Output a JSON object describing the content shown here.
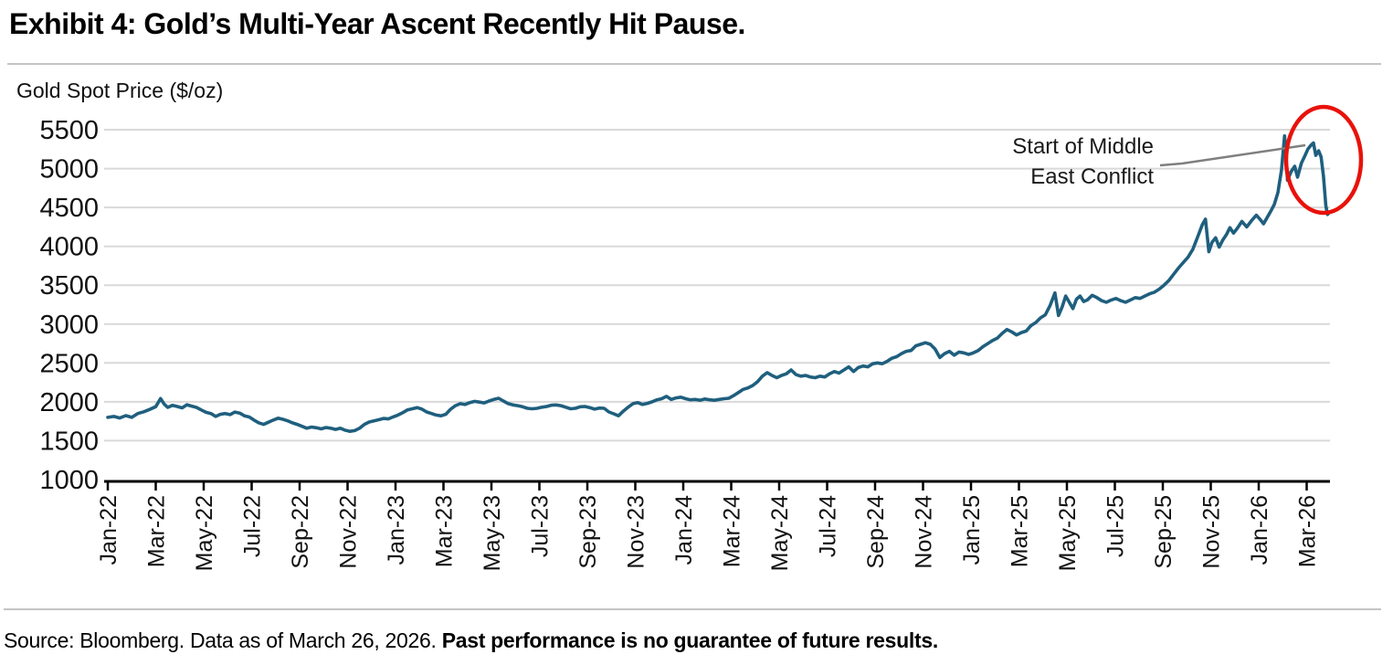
{
  "header": {
    "title": "Exhibit 4: Gold’s Multi-Year Ascent Recently Hit Pause."
  },
  "footer": {
    "source_prefix": "Source: Bloomberg. Data as of March 26, 2026. ",
    "source_emphasis": "Past performance is no guarantee of future results."
  },
  "chart_data": {
    "type": "line",
    "title": "",
    "axis_label": "Gold Spot Price ($/oz)",
    "ylabel": "Gold Spot Price ($/oz)",
    "xlabel": "",
    "ylim": [
      1000,
      5500
    ],
    "yticks": [
      1000,
      1500,
      2000,
      2500,
      3000,
      3500,
      4000,
      4500,
      5000,
      5500
    ],
    "xticks": [
      "Jan-22",
      "Mar-22",
      "May-22",
      "Jul-22",
      "Sep-22",
      "Nov-22",
      "Jan-23",
      "Mar-23",
      "May-23",
      "Jul-23",
      "Sep-23",
      "Nov-23",
      "Jan-24",
      "Mar-24",
      "May-24",
      "Jul-24",
      "Sep-24",
      "Nov-24",
      "Jan-25",
      "Mar-25",
      "May-25",
      "Jul-25",
      "Sep-25",
      "Nov-25",
      "Jan-26",
      "Mar-26"
    ],
    "months_per_xtick": 2,
    "x_unit": "months since Jan-2022",
    "grid": "horizontal",
    "legend": "none",
    "series_name": "Gold Spot Price ($/oz)",
    "line_color": "#1F5F7E",
    "grid_color": "#D9D9D9",
    "axis_color": "#000000",
    "annotation": {
      "label_line1": "Start of Middle",
      "label_line2": "East Conflict",
      "target": "March 2026 peak (~$5,300/oz)",
      "ellipse_color": "#E8120B",
      "connector_color": "#7F7F7F"
    },
    "points": [
      [
        0,
        1800
      ],
      [
        0.25,
        1812
      ],
      [
        0.5,
        1792
      ],
      [
        0.75,
        1822
      ],
      [
        1,
        1800
      ],
      [
        1.25,
        1850
      ],
      [
        1.5,
        1872
      ],
      [
        1.75,
        1902
      ],
      [
        2,
        1938
      ],
      [
        2.2,
        2042
      ],
      [
        2.35,
        1972
      ],
      [
        2.5,
        1928
      ],
      [
        2.7,
        1955
      ],
      [
        2.9,
        1940
      ],
      [
        3.1,
        1922
      ],
      [
        3.3,
        1962
      ],
      [
        3.5,
        1945
      ],
      [
        3.7,
        1928
      ],
      [
        3.9,
        1895
      ],
      [
        4.1,
        1865
      ],
      [
        4.3,
        1850
      ],
      [
        4.5,
        1812
      ],
      [
        4.7,
        1840
      ],
      [
        4.9,
        1850
      ],
      [
        5.1,
        1835
      ],
      [
        5.3,
        1868
      ],
      [
        5.5,
        1855
      ],
      [
        5.7,
        1820
      ],
      [
        5.9,
        1805
      ],
      [
        6.1,
        1765
      ],
      [
        6.3,
        1730
      ],
      [
        6.5,
        1710
      ],
      [
        6.7,
        1738
      ],
      [
        6.9,
        1765
      ],
      [
        7.1,
        1790
      ],
      [
        7.3,
        1775
      ],
      [
        7.5,
        1755
      ],
      [
        7.7,
        1730
      ],
      [
        7.9,
        1710
      ],
      [
        8.1,
        1685
      ],
      [
        8.3,
        1660
      ],
      [
        8.5,
        1676
      ],
      [
        8.7,
        1666
      ],
      [
        8.9,
        1652
      ],
      [
        9.1,
        1670
      ],
      [
        9.3,
        1660
      ],
      [
        9.5,
        1645
      ],
      [
        9.7,
        1660
      ],
      [
        9.9,
        1635
      ],
      [
        10.1,
        1620
      ],
      [
        10.3,
        1630
      ],
      [
        10.5,
        1660
      ],
      [
        10.7,
        1710
      ],
      [
        10.9,
        1740
      ],
      [
        11.1,
        1755
      ],
      [
        11.3,
        1770
      ],
      [
        11.5,
        1786
      ],
      [
        11.7,
        1780
      ],
      [
        11.9,
        1806
      ],
      [
        12.1,
        1830
      ],
      [
        12.3,
        1860
      ],
      [
        12.5,
        1896
      ],
      [
        12.7,
        1910
      ],
      [
        12.9,
        1926
      ],
      [
        13.1,
        1906
      ],
      [
        13.3,
        1870
      ],
      [
        13.5,
        1850
      ],
      [
        13.7,
        1830
      ],
      [
        13.9,
        1820
      ],
      [
        14.1,
        1840
      ],
      [
        14.3,
        1906
      ],
      [
        14.5,
        1950
      ],
      [
        14.7,
        1976
      ],
      [
        14.9,
        1966
      ],
      [
        15.1,
        1990
      ],
      [
        15.3,
        2006
      ],
      [
        15.5,
        1996
      ],
      [
        15.7,
        1986
      ],
      [
        15.9,
        2010
      ],
      [
        16.1,
        2030
      ],
      [
        16.3,
        2046
      ],
      [
        16.5,
        2010
      ],
      [
        16.7,
        1976
      ],
      [
        16.9,
        1960
      ],
      [
        17.1,
        1950
      ],
      [
        17.3,
        1936
      ],
      [
        17.5,
        1916
      ],
      [
        17.7,
        1910
      ],
      [
        17.9,
        1916
      ],
      [
        18.1,
        1930
      ],
      [
        18.3,
        1940
      ],
      [
        18.5,
        1956
      ],
      [
        18.7,
        1960
      ],
      [
        18.9,
        1950
      ],
      [
        19.1,
        1930
      ],
      [
        19.3,
        1910
      ],
      [
        19.5,
        1916
      ],
      [
        19.7,
        1936
      ],
      [
        19.9,
        1940
      ],
      [
        20.1,
        1926
      ],
      [
        20.3,
        1906
      ],
      [
        20.5,
        1920
      ],
      [
        20.7,
        1916
      ],
      [
        20.9,
        1870
      ],
      [
        21.1,
        1846
      ],
      [
        21.3,
        1820
      ],
      [
        21.5,
        1880
      ],
      [
        21.7,
        1930
      ],
      [
        21.9,
        1976
      ],
      [
        22.1,
        1990
      ],
      [
        22.3,
        1966
      ],
      [
        22.5,
        1980
      ],
      [
        22.7,
        2000
      ],
      [
        22.9,
        2026
      ],
      [
        23.1,
        2040
      ],
      [
        23.3,
        2070
      ],
      [
        23.5,
        2030
      ],
      [
        23.7,
        2050
      ],
      [
        23.9,
        2060
      ],
      [
        24.1,
        2040
      ],
      [
        24.3,
        2026
      ],
      [
        24.5,
        2030
      ],
      [
        24.7,
        2020
      ],
      [
        24.9,
        2036
      ],
      [
        25.1,
        2026
      ],
      [
        25.3,
        2020
      ],
      [
        25.5,
        2030
      ],
      [
        25.7,
        2040
      ],
      [
        25.9,
        2046
      ],
      [
        26.1,
        2080
      ],
      [
        26.3,
        2120
      ],
      [
        26.5,
        2160
      ],
      [
        26.7,
        2180
      ],
      [
        26.9,
        2210
      ],
      [
        27.1,
        2260
      ],
      [
        27.3,
        2330
      ],
      [
        27.5,
        2376
      ],
      [
        27.7,
        2340
      ],
      [
        27.9,
        2310
      ],
      [
        28.1,
        2340
      ],
      [
        28.3,
        2360
      ],
      [
        28.5,
        2410
      ],
      [
        28.7,
        2350
      ],
      [
        28.9,
        2330
      ],
      [
        29.1,
        2340
      ],
      [
        29.3,
        2320
      ],
      [
        29.5,
        2310
      ],
      [
        29.7,
        2330
      ],
      [
        29.9,
        2320
      ],
      [
        30.1,
        2360
      ],
      [
        30.3,
        2390
      ],
      [
        30.5,
        2370
      ],
      [
        30.7,
        2410
      ],
      [
        30.9,
        2450
      ],
      [
        31.1,
        2390
      ],
      [
        31.3,
        2440
      ],
      [
        31.5,
        2460
      ],
      [
        31.7,
        2450
      ],
      [
        31.9,
        2490
      ],
      [
        32.1,
        2500
      ],
      [
        32.3,
        2490
      ],
      [
        32.5,
        2520
      ],
      [
        32.7,
        2560
      ],
      [
        32.9,
        2580
      ],
      [
        33.1,
        2620
      ],
      [
        33.3,
        2650
      ],
      [
        33.5,
        2660
      ],
      [
        33.7,
        2720
      ],
      [
        33.9,
        2740
      ],
      [
        34.1,
        2760
      ],
      [
        34.3,
        2740
      ],
      [
        34.5,
        2680
      ],
      [
        34.7,
        2570
      ],
      [
        34.9,
        2620
      ],
      [
        35.1,
        2650
      ],
      [
        35.3,
        2600
      ],
      [
        35.5,
        2640
      ],
      [
        35.7,
        2630
      ],
      [
        35.9,
        2610
      ],
      [
        36.1,
        2630
      ],
      [
        36.3,
        2660
      ],
      [
        36.5,
        2710
      ],
      [
        36.7,
        2750
      ],
      [
        36.9,
        2790
      ],
      [
        37.1,
        2820
      ],
      [
        37.3,
        2880
      ],
      [
        37.5,
        2930
      ],
      [
        37.7,
        2900
      ],
      [
        37.9,
        2860
      ],
      [
        38.1,
        2890
      ],
      [
        38.3,
        2910
      ],
      [
        38.5,
        2980
      ],
      [
        38.7,
        3020
      ],
      [
        38.9,
        3080
      ],
      [
        39.1,
        3120
      ],
      [
        39.3,
        3240
      ],
      [
        39.5,
        3400
      ],
      [
        39.65,
        3110
      ],
      [
        39.8,
        3220
      ],
      [
        39.95,
        3360
      ],
      [
        40.1,
        3280
      ],
      [
        40.25,
        3200
      ],
      [
        40.4,
        3320
      ],
      [
        40.55,
        3360
      ],
      [
        40.7,
        3290
      ],
      [
        40.85,
        3310
      ],
      [
        41.05,
        3370
      ],
      [
        41.25,
        3340
      ],
      [
        41.45,
        3300
      ],
      [
        41.65,
        3280
      ],
      [
        41.85,
        3310
      ],
      [
        42.05,
        3330
      ],
      [
        42.25,
        3300
      ],
      [
        42.45,
        3280
      ],
      [
        42.65,
        3310
      ],
      [
        42.85,
        3340
      ],
      [
        43.05,
        3330
      ],
      [
        43.25,
        3360
      ],
      [
        43.45,
        3390
      ],
      [
        43.65,
        3410
      ],
      [
        43.85,
        3450
      ],
      [
        44.05,
        3500
      ],
      [
        44.25,
        3560
      ],
      [
        44.45,
        3640
      ],
      [
        44.65,
        3720
      ],
      [
        44.85,
        3790
      ],
      [
        45.05,
        3860
      ],
      [
        45.25,
        3960
      ],
      [
        45.45,
        4120
      ],
      [
        45.65,
        4280
      ],
      [
        45.78,
        4350
      ],
      [
        45.92,
        3930
      ],
      [
        46.05,
        4050
      ],
      [
        46.2,
        4110
      ],
      [
        46.35,
        3990
      ],
      [
        46.5,
        4080
      ],
      [
        46.65,
        4150
      ],
      [
        46.8,
        4240
      ],
      [
        46.95,
        4170
      ],
      [
        47.1,
        4230
      ],
      [
        47.3,
        4320
      ],
      [
        47.5,
        4250
      ],
      [
        47.7,
        4330
      ],
      [
        47.9,
        4400
      ],
      [
        48.05,
        4350
      ],
      [
        48.2,
        4290
      ],
      [
        48.35,
        4370
      ],
      [
        48.5,
        4450
      ],
      [
        48.65,
        4540
      ],
      [
        48.8,
        4690
      ],
      [
        48.95,
        4980
      ],
      [
        49.08,
        5420
      ],
      [
        49.2,
        4850
      ],
      [
        49.35,
        4960
      ],
      [
        49.5,
        5030
      ],
      [
        49.62,
        4890
      ],
      [
        49.78,
        5070
      ],
      [
        49.92,
        5160
      ],
      [
        50.05,
        5250
      ],
      [
        50.18,
        5300
      ],
      [
        50.28,
        5330
      ],
      [
        50.38,
        5170
      ],
      [
        50.5,
        5230
      ],
      [
        50.6,
        5150
      ],
      [
        50.7,
        4900
      ],
      [
        50.8,
        4520
      ],
      [
        50.87,
        4410
      ],
      [
        50.95,
        4435
      ]
    ]
  }
}
